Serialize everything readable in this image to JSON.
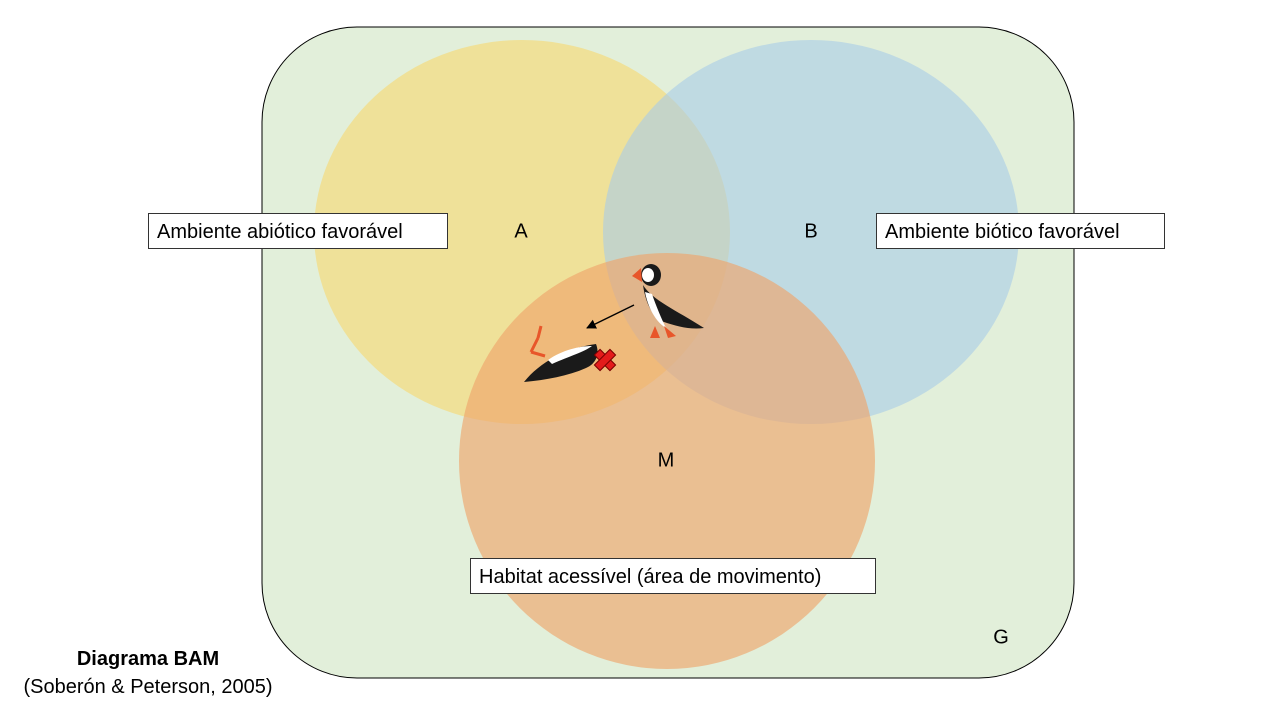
{
  "diagram": {
    "sets": {
      "g": {
        "letter": "G",
        "color": "#e2efda"
      },
      "a": {
        "letter": "A",
        "label": "Ambiente abiótico favorável",
        "color": "#f5dc7d"
      },
      "b": {
        "letter": "B",
        "label": "Ambiente biótico favorável",
        "color": "#a9cce8"
      },
      "m": {
        "letter": "M",
        "label": "Habitat acessível (área de movimento)",
        "color": "#eea46b"
      }
    },
    "caption": {
      "title": "Diagrama BAM",
      "citation": "(Soberón & Peterson, 2005)"
    },
    "icons": [
      "puffin-standing-icon",
      "puffin-fallen-icon",
      "red-x-icon",
      "arrow-icon"
    ]
  }
}
